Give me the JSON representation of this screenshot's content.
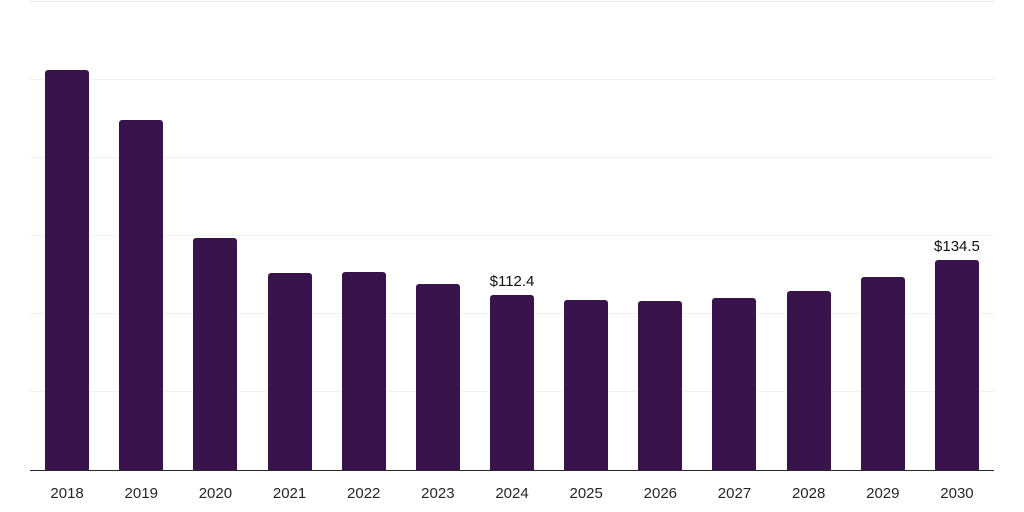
{
  "chart_data": {
    "type": "bar",
    "title": "",
    "xlabel": "",
    "ylabel": "",
    "categories": [
      "2018",
      "2019",
      "2020",
      "2021",
      "2022",
      "2023",
      "2024",
      "2025",
      "2026",
      "2027",
      "2028",
      "2029",
      "2030"
    ],
    "values": [
      256.5,
      224.5,
      149,
      126,
      127,
      119,
      112.4,
      109,
      108.5,
      110,
      115,
      123.5,
      134.5
    ],
    "data_labels": [
      "",
      "",
      "",
      "",
      "",
      "",
      "$112.4",
      "",
      "",
      "",
      "",
      "",
      "$134.5"
    ],
    "ylim": [
      0,
      300
    ],
    "grid": "horizontal",
    "gridlines_at": [
      50,
      100,
      150,
      200,
      250
    ],
    "legend": "none",
    "colors": {
      "bar": "#38134C",
      "axis_line": "#262626",
      "gridline": "#f2f2f2",
      "plot_top_border": "#e8e8e8",
      "tick_label": "#262626",
      "value_label": "#111111",
      "background": "#ffffff"
    }
  }
}
